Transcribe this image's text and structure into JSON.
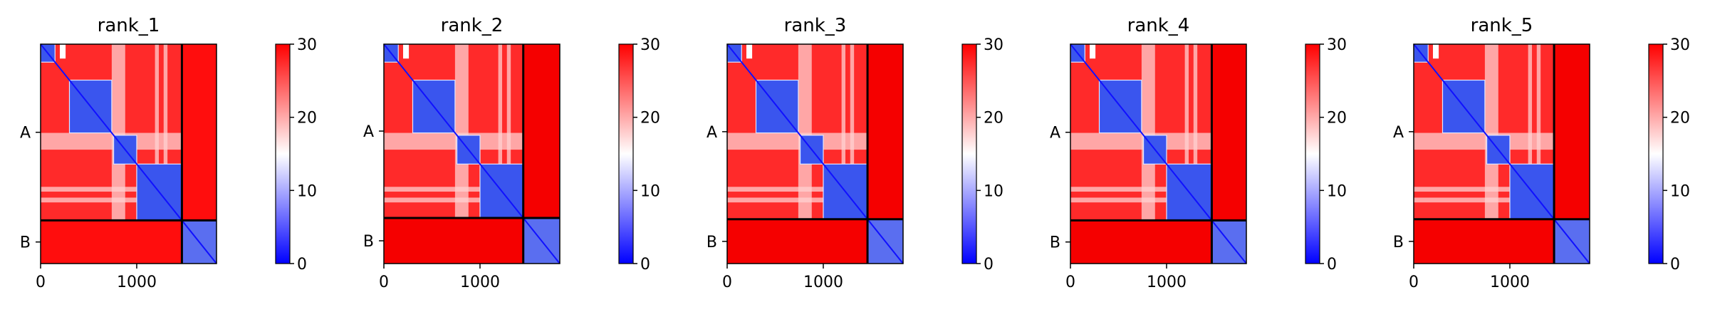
{
  "chart_data": [
    {
      "type": "heatmap",
      "title": "rank_1",
      "chains": [
        {
          "label": "A",
          "start": 0,
          "end": 1470
        },
        {
          "label": "B",
          "start": 1470,
          "end": 1830
        }
      ],
      "xticks": [
        {
          "value": 0,
          "label": "0"
        },
        {
          "value": 1000,
          "label": "1000"
        }
      ],
      "xlim": [
        0,
        1830
      ],
      "colorbar": {
        "ticks": [
          "0",
          "10",
          "20",
          "30"
        ],
        "range": [
          0,
          30
        ],
        "colormap": "bwr"
      },
      "partner_fill": "#ff0d0d"
    },
    {
      "type": "heatmap",
      "title": "rank_2",
      "chains": [
        {
          "label": "A",
          "start": 0,
          "end": 1450
        },
        {
          "label": "B",
          "start": 1450,
          "end": 1830
        }
      ],
      "xticks": [
        {
          "value": 0,
          "label": "0"
        },
        {
          "value": 1000,
          "label": "1000"
        }
      ],
      "xlim": [
        0,
        1830
      ],
      "colorbar": {
        "ticks": [
          "0",
          "10",
          "20",
          "30"
        ],
        "range": [
          0,
          30
        ],
        "colormap": "bwr"
      },
      "partner_fill": "#f50000"
    },
    {
      "type": "heatmap",
      "title": "rank_3",
      "chains": [
        {
          "label": "A",
          "start": 0,
          "end": 1460
        },
        {
          "label": "B",
          "start": 1460,
          "end": 1830
        }
      ],
      "xticks": [
        {
          "value": 0,
          "label": "0"
        },
        {
          "value": 1000,
          "label": "1000"
        }
      ],
      "xlim": [
        0,
        1830
      ],
      "colorbar": {
        "ticks": [
          "0",
          "10",
          "20",
          "30"
        ],
        "range": [
          0,
          30
        ],
        "colormap": "bwr"
      },
      "partner_fill": "#f50000"
    },
    {
      "type": "heatmap",
      "title": "rank_4",
      "chains": [
        {
          "label": "A",
          "start": 0,
          "end": 1470
        },
        {
          "label": "B",
          "start": 1470,
          "end": 1830
        }
      ],
      "xticks": [
        {
          "value": 0,
          "label": "0"
        },
        {
          "value": 1000,
          "label": "1000"
        }
      ],
      "xlim": [
        0,
        1830
      ],
      "colorbar": {
        "ticks": [
          "0",
          "10",
          "20",
          "30"
        ],
        "range": [
          0,
          30
        ],
        "colormap": "bwr"
      },
      "partner_fill": "#f50000"
    },
    {
      "type": "heatmap",
      "title": "rank_5",
      "chains": [
        {
          "label": "A",
          "start": 0,
          "end": 1460
        },
        {
          "label": "B",
          "start": 1460,
          "end": 1830
        }
      ],
      "xticks": [
        {
          "value": 0,
          "label": "0"
        },
        {
          "value": 1000,
          "label": "1000"
        }
      ],
      "xlim": [
        0,
        1830
      ],
      "colorbar": {
        "ticks": [
          "0",
          "10",
          "20",
          "30"
        ],
        "range": [
          0,
          30
        ],
        "colormap": "bwr"
      },
      "partner_fill": "#f50000"
    }
  ],
  "colors": {
    "high": "#ff0000",
    "mid": "#ffffff",
    "low": "#0000ff",
    "intra_block": "#3a55ee",
    "intra_chain_a": "#ff2a2a",
    "divider": "#000000"
  }
}
